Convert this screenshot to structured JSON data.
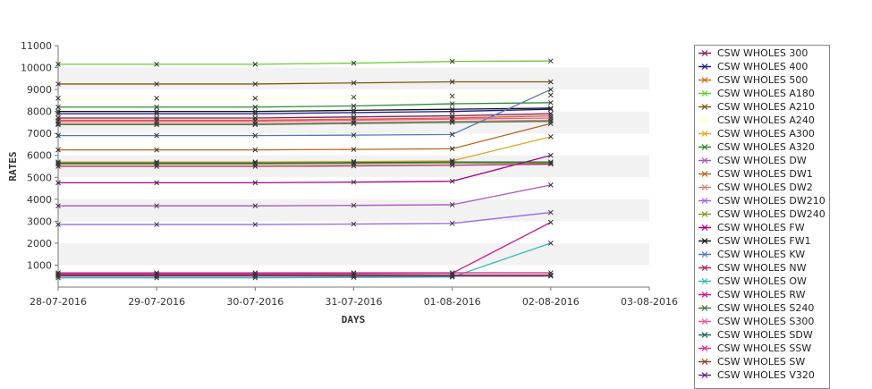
{
  "chart_data": {
    "type": "line",
    "xlabel": "DAYS",
    "ylabel": "RATES",
    "x": [
      "28-07-2016",
      "29-07-2016",
      "30-07-2016",
      "31-07-2016",
      "01-08-2016",
      "02-08-2016"
    ],
    "x_ticks": [
      "28-07-2016",
      "29-07-2016",
      "30-07-2016",
      "31-07-2016",
      "01-08-2016",
      "02-08-2016",
      "03-08-2016"
    ],
    "y_ticks": [
      1000,
      2000,
      3000,
      4000,
      5000,
      6000,
      7000,
      8000,
      9000,
      10000,
      11000
    ],
    "ylim": [
      0,
      11000
    ],
    "grid": "alternating horizontal bands",
    "legend_position": "right",
    "series": [
      {
        "name": "CSW WHOLES 300",
        "color": "#8b1a5a",
        "values": [
          7700,
          7700,
          7700,
          7750,
          7800,
          7900
        ]
      },
      {
        "name": "CSW WHOLES 400",
        "color": "#1a1a8b",
        "values": [
          7900,
          7900,
          7900,
          7950,
          8000,
          8100
        ]
      },
      {
        "name": "CSW WHOLES 500",
        "color": "#d2691e",
        "values": [
          7600,
          7600,
          7600,
          7650,
          7700,
          7800
        ]
      },
      {
        "name": "CSW WHOLES A180",
        "color": "#66cc33",
        "values": [
          10150,
          10150,
          10150,
          10200,
          10280,
          10300
        ]
      },
      {
        "name": "CSW WHOLES A210",
        "color": "#7a5a10",
        "values": [
          9250,
          9250,
          9250,
          9300,
          9350,
          9350
        ]
      },
      {
        "name": "CSW WHOLES A240",
        "color": "#ffffcc",
        "values": [
          8600,
          8600,
          8600,
          8650,
          8700,
          8750
        ]
      },
      {
        "name": "CSW WHOLES A300",
        "color": "#ddaa22",
        "values": [
          5700,
          5700,
          5700,
          5720,
          5750,
          6850
        ]
      },
      {
        "name": "CSW WHOLES A320",
        "color": "#2e8b2e",
        "values": [
          8200,
          8200,
          8200,
          8250,
          8350,
          8400
        ]
      },
      {
        "name": "CSW WHOLES DW",
        "color": "#aa55bb",
        "values": [
          3700,
          3700,
          3700,
          3720,
          3750,
          4650
        ]
      },
      {
        "name": "CSW WHOLES DW1",
        "color": "#b5651d",
        "values": [
          6250,
          6250,
          6250,
          6270,
          6300,
          7450
        ]
      },
      {
        "name": "CSW WHOLES DW2",
        "color": "#cc8877",
        "values": [
          7450,
          7450,
          7450,
          7500,
          7550,
          7600
        ]
      },
      {
        "name": "CSW WHOLES DW210",
        "color": "#9966ee",
        "values": [
          2850,
          2850,
          2850,
          2870,
          2900,
          3400
        ]
      },
      {
        "name": "CSW WHOLES DW240",
        "color": "#889922",
        "values": [
          5600,
          5600,
          5600,
          5620,
          5650,
          5650
        ]
      },
      {
        "name": "CSW WHOLES FW",
        "color": "#aa0088",
        "values": [
          4750,
          4750,
          4750,
          4780,
          4820,
          6000
        ]
      },
      {
        "name": "CSW WHOLES FW1",
        "color": "#111111",
        "values": [
          8000,
          8000,
          8000,
          8050,
          8100,
          8150
        ]
      },
      {
        "name": "CSW WHOLES KW",
        "color": "#5577bb",
        "values": [
          6900,
          6900,
          6900,
          6920,
          6950,
          9000
        ]
      },
      {
        "name": "CSW WHOLES NW",
        "color": "#aa2266",
        "values": [
          5500,
          5500,
          5500,
          5520,
          5550,
          5600
        ]
      },
      {
        "name": "CSW WHOLES OW",
        "color": "#33bbbb",
        "values": [
          420,
          420,
          420,
          440,
          460,
          2000
        ]
      },
      {
        "name": "CSW WHOLES RW",
        "color": "#cc1188",
        "values": [
          600,
          600,
          600,
          610,
          630,
          2950
        ]
      },
      {
        "name": "CSW WHOLES S240",
        "color": "#447744",
        "values": [
          7400,
          7400,
          7400,
          7450,
          7500,
          7550
        ]
      },
      {
        "name": "CSW WHOLES S300",
        "color": "#ee5599",
        "values": [
          7550,
          7550,
          7550,
          7600,
          7650,
          7700
        ]
      },
      {
        "name": "CSW WHOLES SDW",
        "color": "#226655",
        "values": [
          5650,
          5650,
          5650,
          5670,
          5700,
          5700
        ]
      },
      {
        "name": "CSW WHOLES SSW",
        "color": "#cc3399",
        "values": [
          650,
          650,
          650,
          650,
          650,
          650
        ]
      },
      {
        "name": "CSW WHOLES SW",
        "color": "#884422",
        "values": [
          550,
          550,
          550,
          550,
          550,
          550
        ]
      },
      {
        "name": "CSW WHOLES V320",
        "color": "#662288",
        "values": [
          500,
          500,
          500,
          500,
          500,
          500
        ]
      }
    ]
  }
}
